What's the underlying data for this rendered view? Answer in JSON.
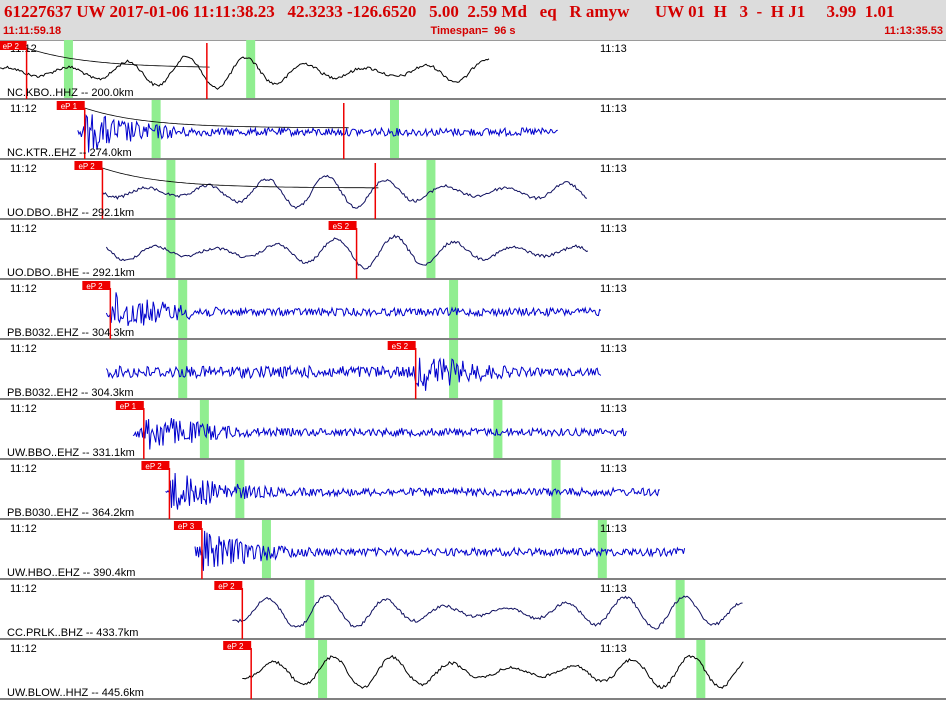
{
  "header": {
    "title": "61227637 UW 2017-01-06 11:11:38.23   42.3233 -126.6520   5.00  2.59 Md   eq   R amyw      UW 01  H   3  -  H J1     3.99  1.01",
    "start_time": "11:11:59.18",
    "timespan": "Timespan=  96 s",
    "end_time": "11:13:35.53"
  },
  "colors": {
    "header_text": "#d40000",
    "header_bg": "#dcdcdc",
    "trace_blue": "#0000cc",
    "trace_navy": "#101060",
    "trace_black": "#000000",
    "pick_red": "#ee0000",
    "window_green": "#90ee90"
  },
  "panels": [
    {
      "station": "NC.KBO..HHZ -- 200.0km",
      "t1": "11:12",
      "t2": "11:13",
      "pick": "eP 2",
      "pick_time_s": 2.7,
      "trace_start_s": 0.0,
      "trace_end_s": 49.7,
      "color": "black",
      "style": "smooth",
      "green_s": [
        7.0,
        25.5
      ],
      "extra_pick_s": 21.0,
      "curve": true
    },
    {
      "station": "NC.KTR..EHZ -- 274.0km",
      "t1": "11:12",
      "t2": "11:13",
      "pick": "eP 1",
      "pick_time_s": 8.6,
      "trace_start_s": 7.9,
      "trace_end_s": 56.7,
      "color": "blue",
      "style": "noisy",
      "green_s": [
        15.9,
        40.1
      ],
      "extra_pick_s": 34.9,
      "curve": true
    },
    {
      "station": "UO.DBO..BHZ -- 292.1km",
      "t1": "11:12",
      "t2": "11:13",
      "pick": "eP 2",
      "pick_time_s": 10.4,
      "trace_start_s": 10.4,
      "trace_end_s": 59.7,
      "color": "navy",
      "style": "smooth",
      "green_s": [
        17.4,
        43.8
      ],
      "extra_pick_s": 38.1,
      "curve": true
    },
    {
      "station": "UO.DBO..BHE -- 292.1km",
      "t1": "11:12",
      "t2": "11:13",
      "pick": "eS 2",
      "pick_time_s": 36.2,
      "trace_start_s": 10.8,
      "trace_end_s": 59.7,
      "color": "navy",
      "style": "smooth",
      "green_s": [
        17.4,
        43.8
      ]
    },
    {
      "station": "PB.B032..EHZ -- 304.3km",
      "t1": "11:12",
      "t2": "11:13",
      "pick": "eP 2",
      "pick_time_s": 11.2,
      "trace_start_s": 10.8,
      "trace_end_s": 61.0,
      "color": "blue",
      "style": "noisy",
      "green_s": [
        18.6,
        46.1
      ]
    },
    {
      "station": "PB.B032..EH2 -- 304.3km",
      "t1": "11:12",
      "t2": "11:13",
      "pick": "eS 2",
      "pick_time_s": 42.2,
      "trace_start_s": 10.8,
      "trace_end_s": 61.0,
      "color": "blue",
      "style": "noisy",
      "green_s": [
        18.6,
        46.1
      ]
    },
    {
      "station": "UW.BBO..EHZ -- 331.1km",
      "t1": "11:12",
      "t2": "11:13",
      "pick": "eP 1",
      "pick_time_s": 14.6,
      "trace_start_s": 13.5,
      "trace_end_s": 63.6,
      "color": "blue",
      "style": "noisy",
      "green_s": [
        20.8,
        50.6
      ]
    },
    {
      "station": "PB.B030..EHZ -- 364.2km",
      "t1": "11:12",
      "t2": "11:13",
      "pick": "eP 2",
      "pick_time_s": 17.2,
      "trace_start_s": 16.8,
      "trace_end_s": 67.0,
      "color": "blue",
      "style": "noisy",
      "green_s": [
        24.4,
        56.5
      ]
    },
    {
      "station": "UW.HBO..EHZ -- 390.4km",
      "t1": "11:12",
      "t2": "11:13",
      "pick": "eP 3",
      "pick_time_s": 20.5,
      "trace_start_s": 19.8,
      "trace_end_s": 69.6,
      "color": "blue",
      "style": "noisy",
      "green_s": [
        27.1,
        61.2
      ]
    },
    {
      "station": "CC.PRLK..BHZ -- 433.7km",
      "t1": "11:12",
      "t2": "11:13",
      "pick": "eP 2",
      "pick_time_s": 24.6,
      "trace_start_s": 23.6,
      "trace_end_s": 75.5,
      "color": "navy",
      "style": "smooth",
      "green_s": [
        31.5,
        69.1
      ]
    },
    {
      "station": "UW.BLOW..HHZ -- 445.6km",
      "t1": "11:12",
      "t2": "11:13",
      "pick": "eP 2",
      "pick_time_s": 25.5,
      "trace_start_s": 24.6,
      "trace_end_s": 75.5,
      "color": "black",
      "style": "smooth",
      "green_s": [
        32.8,
        71.2
      ]
    }
  ]
}
